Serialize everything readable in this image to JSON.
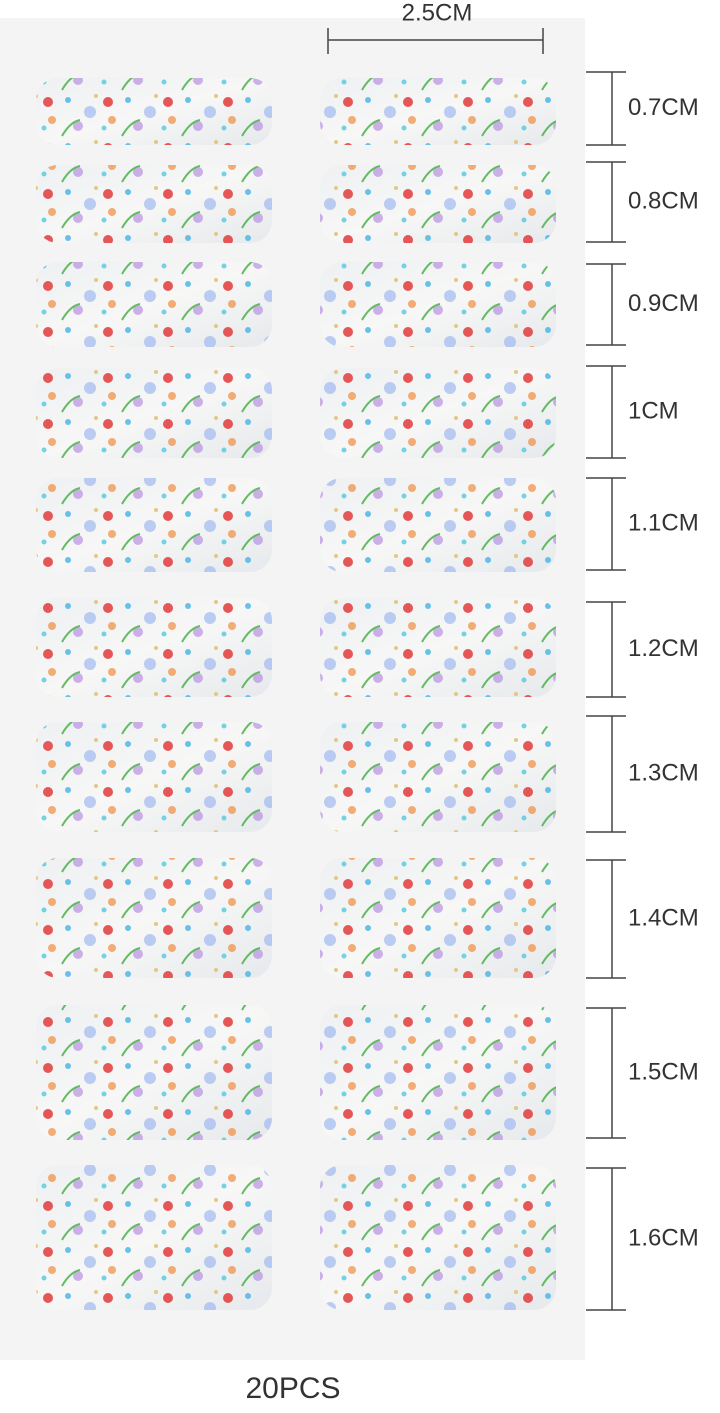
{
  "top_measure": "2.5CM",
  "rows": [
    {
      "label": "0.7CM"
    },
    {
      "label": "0.8CM"
    },
    {
      "label": "0.9CM"
    },
    {
      "label": "1CM"
    },
    {
      "label": "1.1CM"
    },
    {
      "label": "1.2CM"
    },
    {
      "label": "1.3CM"
    },
    {
      "label": "1.4CM"
    },
    {
      "label": "1.5CM"
    },
    {
      "label": "1.6CM"
    }
  ],
  "footer": "20PCS"
}
